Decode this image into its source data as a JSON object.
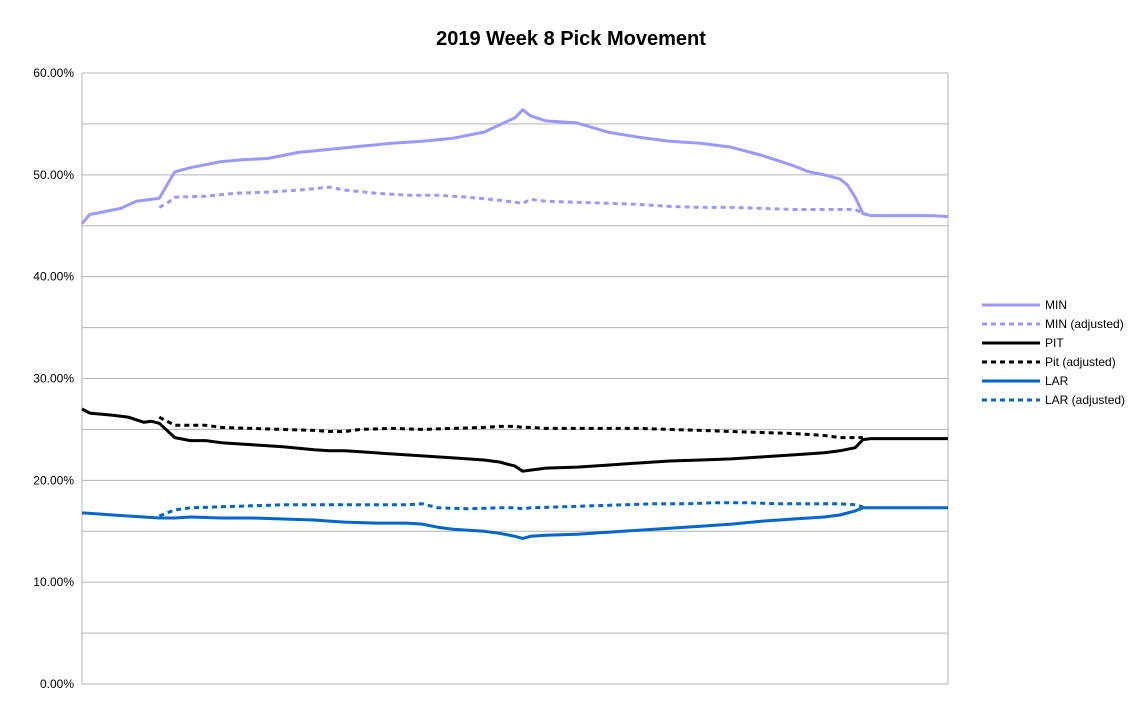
{
  "chart_data": {
    "type": "line",
    "title": "2019 Week 8 Pick Movement",
    "xlabel": "",
    "ylabel": "",
    "ylim": [
      0,
      0.6
    ],
    "yticks": [
      0,
      0.05,
      0.1,
      0.15,
      0.2,
      0.25,
      0.3,
      0.35,
      0.4,
      0.45,
      0.5,
      0.55,
      0.6
    ],
    "ytick_labels": [
      "0.00%",
      "",
      "10.00%",
      "",
      "20.00%",
      "",
      "30.00%",
      "",
      "40.00%",
      "",
      "50.00%",
      "",
      "60.00%"
    ],
    "x_count": 101,
    "grid": true,
    "legend_position": "right",
    "series": [
      {
        "name": "MIN",
        "color": "#9999ff",
        "style": "solid",
        "points": [
          [
            0,
            0.452
          ],
          [
            1,
            0.461
          ],
          [
            3,
            0.464
          ],
          [
            5,
            0.467
          ],
          [
            7,
            0.474
          ],
          [
            9,
            0.476
          ],
          [
            10,
            0.477
          ],
          [
            12,
            0.503
          ],
          [
            14,
            0.507
          ],
          [
            18,
            0.513
          ],
          [
            21,
            0.515
          ],
          [
            24,
            0.516
          ],
          [
            28,
            0.522
          ],
          [
            32,
            0.525
          ],
          [
            36,
            0.528
          ],
          [
            40,
            0.531
          ],
          [
            44,
            0.533
          ],
          [
            48,
            0.536
          ],
          [
            52,
            0.542
          ],
          [
            54,
            0.549
          ],
          [
            56,
            0.556
          ],
          [
            57,
            0.564
          ],
          [
            58,
            0.558
          ],
          [
            60,
            0.553
          ],
          [
            64,
            0.551
          ],
          [
            68,
            0.542
          ],
          [
            72,
            0.537
          ],
          [
            76,
            0.533
          ],
          [
            80,
            0.531
          ],
          [
            84,
            0.527
          ],
          [
            88,
            0.519
          ],
          [
            92,
            0.509
          ],
          [
            94,
            0.503
          ],
          [
            96,
            0.5
          ],
          [
            98,
            0.496
          ],
          [
            99,
            0.49
          ],
          [
            100,
            0.478
          ],
          [
            101,
            0.462
          ],
          [
            102,
            0.46
          ],
          [
            110,
            0.46
          ],
          [
            112,
            0.459
          ]
        ]
      },
      {
        "name": "MIN (adjusted)",
        "color": "#9999ff",
        "style": "dashed",
        "points": [
          [
            10,
            0.468
          ],
          [
            11,
            0.472
          ],
          [
            12,
            0.478
          ],
          [
            16,
            0.479
          ],
          [
            20,
            0.482
          ],
          [
            24,
            0.483
          ],
          [
            28,
            0.485
          ],
          [
            32,
            0.488
          ],
          [
            34,
            0.485
          ],
          [
            38,
            0.482
          ],
          [
            42,
            0.48
          ],
          [
            46,
            0.48
          ],
          [
            50,
            0.478
          ],
          [
            54,
            0.475
          ],
          [
            56,
            0.473
          ],
          [
            57,
            0.472
          ],
          [
            58,
            0.476
          ],
          [
            60,
            0.474
          ],
          [
            64,
            0.473
          ],
          [
            68,
            0.472
          ],
          [
            72,
            0.471
          ],
          [
            76,
            0.469
          ],
          [
            80,
            0.468
          ],
          [
            84,
            0.468
          ],
          [
            88,
            0.467
          ],
          [
            92,
            0.466
          ],
          [
            96,
            0.466
          ],
          [
            100,
            0.466
          ],
          [
            101,
            0.462
          ]
        ]
      },
      {
        "name": "PIT",
        "color": "#000000",
        "style": "solid",
        "points": [
          [
            0,
            0.27
          ],
          [
            1,
            0.266
          ],
          [
            4,
            0.264
          ],
          [
            6,
            0.262
          ],
          [
            8,
            0.257
          ],
          [
            9,
            0.258
          ],
          [
            10,
            0.256
          ],
          [
            12,
            0.242
          ],
          [
            14,
            0.239
          ],
          [
            16,
            0.239
          ],
          [
            18,
            0.237
          ],
          [
            22,
            0.235
          ],
          [
            26,
            0.233
          ],
          [
            30,
            0.23
          ],
          [
            32,
            0.229
          ],
          [
            34,
            0.229
          ],
          [
            36,
            0.228
          ],
          [
            40,
            0.226
          ],
          [
            44,
            0.224
          ],
          [
            48,
            0.222
          ],
          [
            52,
            0.22
          ],
          [
            54,
            0.218
          ],
          [
            56,
            0.214
          ],
          [
            57,
            0.209
          ],
          [
            58,
            0.21
          ],
          [
            60,
            0.212
          ],
          [
            64,
            0.213
          ],
          [
            68,
            0.215
          ],
          [
            72,
            0.217
          ],
          [
            76,
            0.219
          ],
          [
            80,
            0.22
          ],
          [
            84,
            0.221
          ],
          [
            88,
            0.223
          ],
          [
            92,
            0.225
          ],
          [
            96,
            0.227
          ],
          [
            98,
            0.229
          ],
          [
            100,
            0.232
          ],
          [
            101,
            0.24
          ],
          [
            102,
            0.241
          ],
          [
            112,
            0.241
          ]
        ]
      },
      {
        "name": "Pit (adjusted)",
        "color": "#000000",
        "style": "dashed",
        "points": [
          [
            10,
            0.262
          ],
          [
            11,
            0.258
          ],
          [
            12,
            0.254
          ],
          [
            16,
            0.254
          ],
          [
            18,
            0.252
          ],
          [
            22,
            0.251
          ],
          [
            26,
            0.25
          ],
          [
            30,
            0.249
          ],
          [
            32,
            0.248
          ],
          [
            34,
            0.248
          ],
          [
            36,
            0.25
          ],
          [
            40,
            0.251
          ],
          [
            44,
            0.25
          ],
          [
            48,
            0.251
          ],
          [
            52,
            0.252
          ],
          [
            54,
            0.253
          ],
          [
            56,
            0.253
          ],
          [
            57,
            0.252
          ],
          [
            58,
            0.252
          ],
          [
            60,
            0.251
          ],
          [
            64,
            0.251
          ],
          [
            68,
            0.251
          ],
          [
            72,
            0.251
          ],
          [
            76,
            0.25
          ],
          [
            80,
            0.249
          ],
          [
            84,
            0.248
          ],
          [
            88,
            0.247
          ],
          [
            92,
            0.246
          ],
          [
            96,
            0.244
          ],
          [
            98,
            0.242
          ],
          [
            100,
            0.242
          ],
          [
            101,
            0.242
          ]
        ]
      },
      {
        "name": "LAR",
        "color": "#0066cc",
        "style": "solid",
        "points": [
          [
            0,
            0.168
          ],
          [
            2,
            0.167
          ],
          [
            4,
            0.166
          ],
          [
            6,
            0.165
          ],
          [
            8,
            0.164
          ],
          [
            10,
            0.163
          ],
          [
            12,
            0.163
          ],
          [
            14,
            0.164
          ],
          [
            18,
            0.163
          ],
          [
            22,
            0.163
          ],
          [
            26,
            0.162
          ],
          [
            30,
            0.161
          ],
          [
            32,
            0.16
          ],
          [
            34,
            0.159
          ],
          [
            38,
            0.158
          ],
          [
            42,
            0.158
          ],
          [
            44,
            0.157
          ],
          [
            46,
            0.154
          ],
          [
            48,
            0.152
          ],
          [
            50,
            0.151
          ],
          [
            52,
            0.15
          ],
          [
            54,
            0.148
          ],
          [
            56,
            0.145
          ],
          [
            57,
            0.143
          ],
          [
            58,
            0.145
          ],
          [
            60,
            0.146
          ],
          [
            64,
            0.147
          ],
          [
            68,
            0.149
          ],
          [
            72,
            0.151
          ],
          [
            76,
            0.153
          ],
          [
            80,
            0.155
          ],
          [
            84,
            0.157
          ],
          [
            88,
            0.16
          ],
          [
            92,
            0.162
          ],
          [
            96,
            0.164
          ],
          [
            98,
            0.166
          ],
          [
            100,
            0.17
          ],
          [
            101,
            0.173
          ],
          [
            112,
            0.173
          ]
        ]
      },
      {
        "name": "LAR (adjusted)",
        "color": "#0066cc",
        "style": "dashed",
        "points": [
          [
            10,
            0.165
          ],
          [
            11,
            0.168
          ],
          [
            12,
            0.171
          ],
          [
            14,
            0.173
          ],
          [
            18,
            0.174
          ],
          [
            22,
            0.175
          ],
          [
            26,
            0.176
          ],
          [
            30,
            0.176
          ],
          [
            34,
            0.176
          ],
          [
            38,
            0.176
          ],
          [
            42,
            0.176
          ],
          [
            44,
            0.177
          ],
          [
            46,
            0.173
          ],
          [
            50,
            0.172
          ],
          [
            54,
            0.173
          ],
          [
            56,
            0.173
          ],
          [
            57,
            0.172
          ],
          [
            58,
            0.173
          ],
          [
            62,
            0.174
          ],
          [
            66,
            0.175
          ],
          [
            70,
            0.176
          ],
          [
            74,
            0.177
          ],
          [
            78,
            0.177
          ],
          [
            82,
            0.178
          ],
          [
            86,
            0.178
          ],
          [
            90,
            0.177
          ],
          [
            94,
            0.177
          ],
          [
            98,
            0.177
          ],
          [
            100,
            0.176
          ],
          [
            101,
            0.174
          ]
        ]
      }
    ]
  }
}
